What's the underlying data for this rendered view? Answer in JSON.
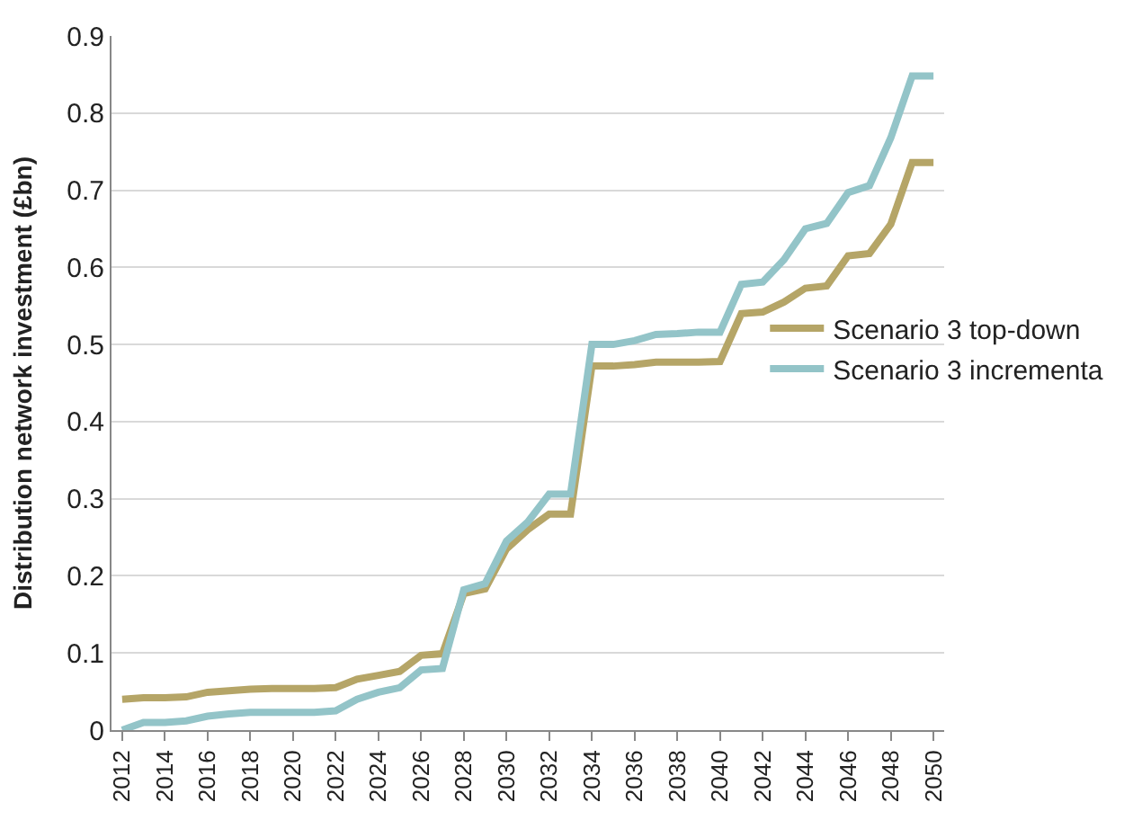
{
  "chart_data": {
    "type": "line",
    "ylabel": "Distribution network investment (£bn)",
    "categories": [
      "2012",
      null,
      "2014",
      null,
      "2016",
      null,
      "2018",
      null,
      "2020",
      null,
      "2022",
      null,
      "2024",
      null,
      "2026",
      null,
      "2028",
      null,
      "2030",
      null,
      "2032",
      null,
      "2034",
      null,
      "2036",
      null,
      "2038",
      null,
      "2040",
      null,
      "2042",
      null,
      "2044",
      null,
      "2046",
      null,
      "2048",
      null,
      "2050"
    ],
    "series": [
      {
        "name": "Scenario 3 top-down",
        "color": "#b5a567",
        "values": [
          0.04,
          0.042,
          0.042,
          0.043,
          0.049,
          0.051,
          0.053,
          0.054,
          0.054,
          0.054,
          0.055,
          0.066,
          0.071,
          0.076,
          0.097,
          0.099,
          0.177,
          0.183,
          0.235,
          0.26,
          0.28,
          0.28,
          0.472,
          0.472,
          0.474,
          0.477,
          0.477,
          0.477,
          0.478,
          0.54,
          0.542,
          0.555,
          0.573,
          0.576,
          0.615,
          0.618,
          0.656,
          0.736,
          0.736
        ]
      },
      {
        "name": "Scenario 3 incrementa",
        "color": "#93c4c8",
        "values": [
          0,
          0.01,
          0.01,
          0.012,
          0.018,
          0.021,
          0.023,
          0.023,
          0.023,
          0.023,
          0.025,
          0.04,
          0.049,
          0.055,
          0.078,
          0.08,
          0.182,
          0.19,
          0.245,
          0.27,
          0.306,
          0.306,
          0.5,
          0.5,
          0.505,
          0.513,
          0.514,
          0.516,
          0.516,
          0.578,
          0.581,
          0.61,
          0.65,
          0.657,
          0.697,
          0.706,
          0.768,
          0.848,
          0.848
        ]
      }
    ],
    "ylim": [
      0,
      0.9
    ],
    "yticks": [
      0,
      0.1,
      0.2,
      0.3,
      0.4,
      0.5,
      0.6,
      0.7,
      0.8,
      0.9
    ],
    "grid": "y",
    "legend": "right",
    "marker": "none",
    "line_style": "solid"
  }
}
